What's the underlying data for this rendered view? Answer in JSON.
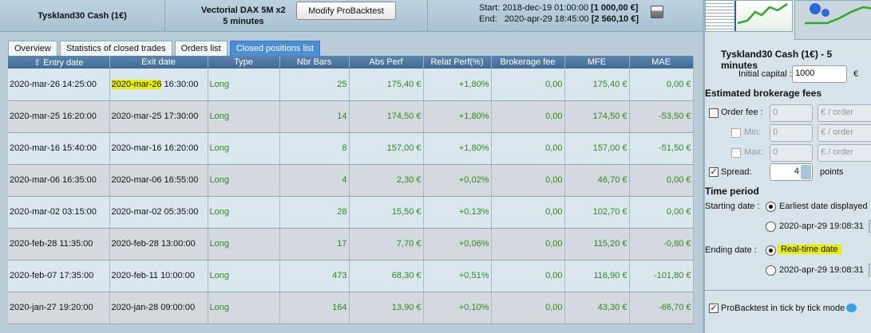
{
  "header": {
    "instrument": "Tyskland30 Cash (1€)",
    "system_name": "Vectorial DAX 5M x2",
    "timeframe": "5 minutes",
    "modify_button": "Modify ProBacktest",
    "start_label": "Start:",
    "start_date": "2018-dec-19 01:00:00",
    "start_value": "[1 000,00 €]",
    "end_label": "End:",
    "end_date": "2020-apr-29 18:45:00",
    "end_value": "[2 560,10 €]"
  },
  "tabs": [
    {
      "label": "Overview"
    },
    {
      "label": "Statistics of closed trades"
    },
    {
      "label": "Orders list"
    },
    {
      "label": "Closed positions list",
      "active": true
    }
  ],
  "table": {
    "columns": [
      "⇧ Entry date",
      "Exit date",
      "Type",
      "Nbr Bars",
      "Abs Perf",
      "Relat Perf(%)",
      "Brokerage fee",
      "MFE",
      "MAE"
    ],
    "rows": [
      [
        "2020-mar-26 14:25:00",
        "2020-mar-26 16:30:00",
        "Long",
        "25",
        "175,40 €",
        "+1,80%",
        "0,00",
        "175,40 €",
        "0,00 €"
      ],
      [
        "2020-mar-25 16:20:00",
        "2020-mar-25 17:30:00",
        "Long",
        "14",
        "174,50 €",
        "+1,80%",
        "0,00",
        "174,50 €",
        "-53,50 €"
      ],
      [
        "2020-mar-16 15:40:00",
        "2020-mar-16 16:20:00",
        "Long",
        "8",
        "157,00 €",
        "+1,80%",
        "0,00",
        "157,00 €",
        "-51,50 €"
      ],
      [
        "2020-mar-06 16:35:00",
        "2020-mar-06 16:55:00",
        "Long",
        "4",
        "2,30 €",
        "+0,02%",
        "0,00",
        "46,70 €",
        "0,00 €"
      ],
      [
        "2020-mar-02 03:15:00",
        "2020-mar-02 05:35:00",
        "Long",
        "28",
        "15,50 €",
        "+0,13%",
        "0,00",
        "102,70 €",
        "0,00 €"
      ],
      [
        "2020-feb-28 11:35:00",
        "2020-feb-28 13:00:00",
        "Long",
        "17",
        "7,70 €",
        "+0,06%",
        "0,00",
        "115,20 €",
        "-0,80 €"
      ],
      [
        "2020-feb-07 17:35:00",
        "2020-feb-11 10:00:00",
        "Long",
        "473",
        "68,30 €",
        "+0,51%",
        "0,00",
        "116,90 €",
        "-101,80 €"
      ],
      [
        "2020-jan-27 19:20:00",
        "2020-jan-28 09:00:00",
        "Long",
        "164",
        "13,90 €",
        "+0,10%",
        "0,00",
        "43,30 €",
        "-66,70 €"
      ]
    ]
  },
  "sidebar": {
    "title": "Tyskland30 Cash (1€) - 5 minutes",
    "initial_capital_label": "Initial capital :",
    "initial_capital": "1000",
    "currency": "€",
    "fees_heading": "Estimated brokerage fees",
    "order_fee_label": "Order fee :",
    "order_fee": "0",
    "unit": "€ / order",
    "min_label": "Min:",
    "min": "0",
    "max_label": "Max:",
    "max": "0",
    "spread_label": "Spread:",
    "spread": "4",
    "spread_unit": "points",
    "time_heading": "Time period",
    "starting_label": "Starting date :",
    "start_opt1": "Earliest date displayed",
    "start_opt2": "2020-apr-29 19:08:31",
    "ending_label": "Ending date :",
    "end_opt1": "Real-time date",
    "end_opt2": "2020-apr-29 19:08:31",
    "tick_label": "ProBacktest in tick by tick mode"
  },
  "colors": {
    "positive": "#2a8a1a",
    "highlight": "#e8f000",
    "active_tab": "#4a8fd6",
    "header": "#3f6a95"
  }
}
